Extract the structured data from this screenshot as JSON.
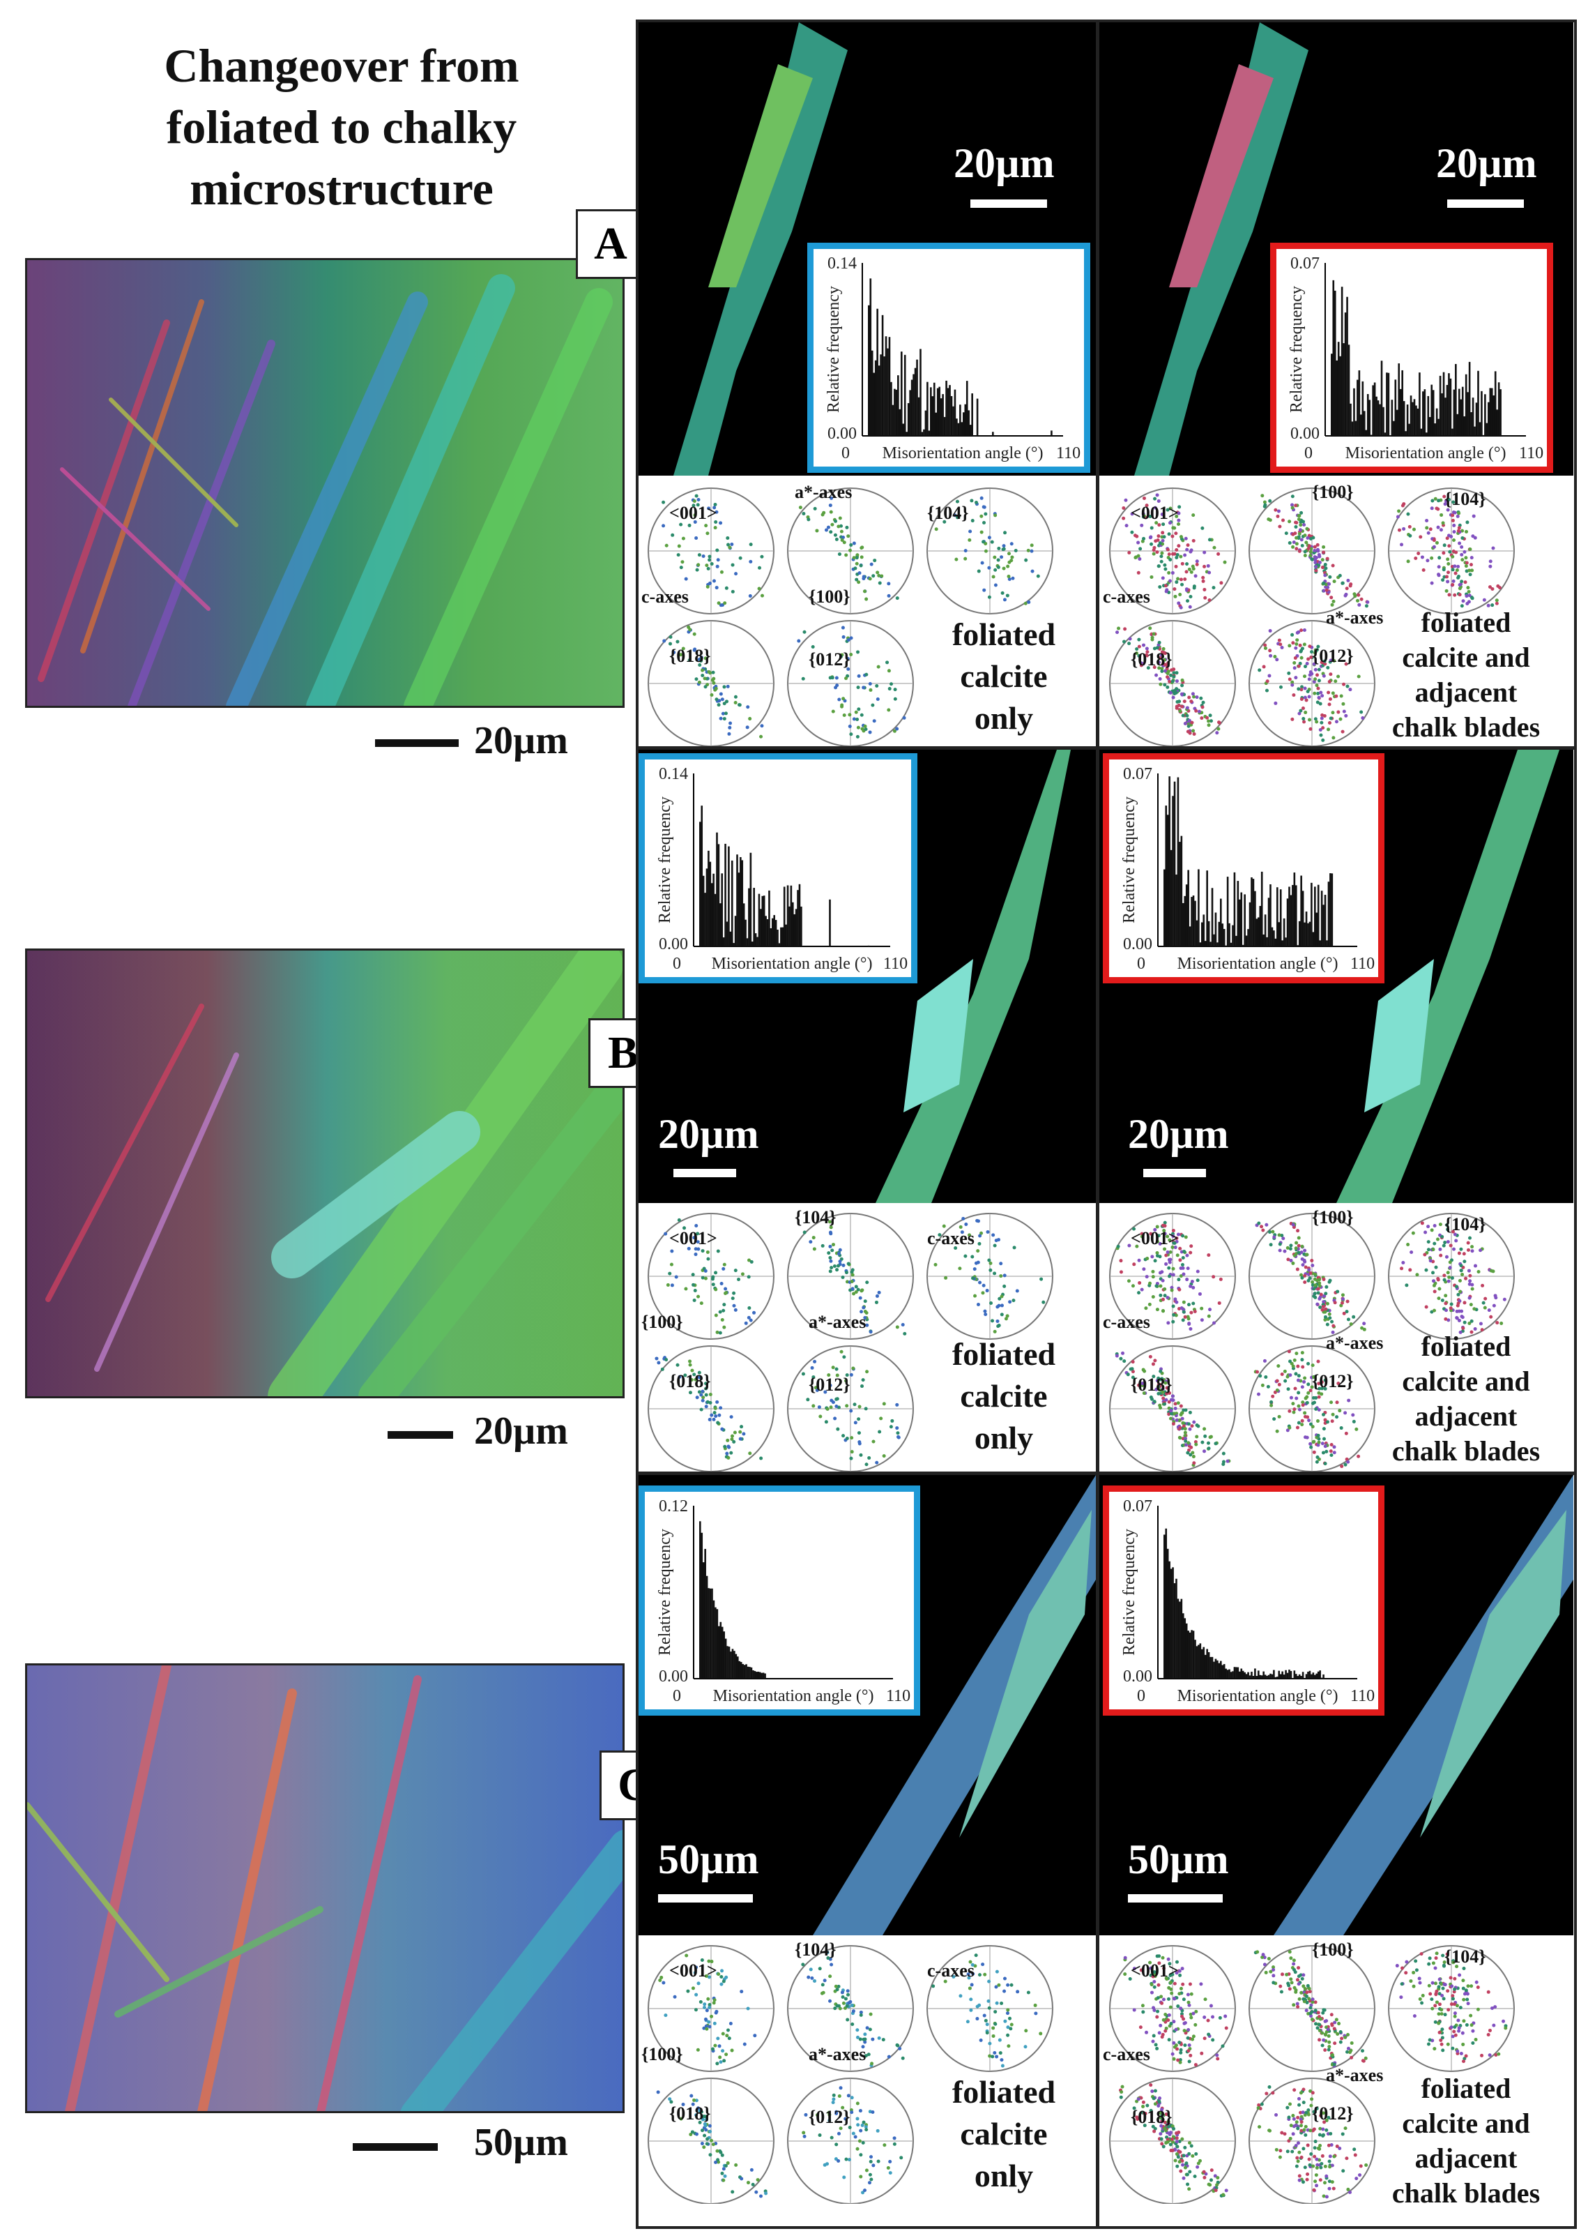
{
  "title_lines": [
    "Changeover from",
    "foliated to chalky",
    "microstructure"
  ],
  "rows": [
    {
      "letter": "A",
      "map_scale": "20µm",
      "left_panel": {
        "scale": "20µm",
        "hist_ymax": "0.14",
        "hist_ymin": "0.00",
        "hist_xmin": "0",
        "hist_xmax": "110",
        "hist_xlabel": "Misorientation angle (°)",
        "hist_ylabel": "Relative frequency",
        "pf_labels": [
          "<001>",
          "a*-axes",
          "{104}",
          "c-axes",
          "{100}",
          "{018}",
          "{012}"
        ],
        "caption": [
          "foliated",
          "calcite",
          "only"
        ]
      },
      "right_panel": {
        "scale": "20µm",
        "hist_ymax": "0.07",
        "hist_ymin": "0.00",
        "hist_xmin": "0",
        "hist_xmax": "110",
        "hist_xlabel": "Misorientation angle (°)",
        "hist_ylabel": "Relative frequency",
        "pf_labels": [
          "<001>",
          "{100}",
          "{104}",
          "c-axes",
          "a*-axes",
          "{018}",
          "{012}"
        ],
        "caption": [
          "foliated",
          "calcite and",
          "adjacent",
          "chalk blades"
        ]
      }
    },
    {
      "letter": "B",
      "map_scale": "20µm",
      "left_panel": {
        "scale": "20µm",
        "hist_ymax": "0.14",
        "hist_ymin": "0.00",
        "hist_xmin": "0",
        "hist_xmax": "110",
        "hist_xlabel": "Misorientation angle (°)",
        "hist_ylabel": "Relative frequency",
        "pf_labels": [
          "<001>",
          "{104}",
          "c-axes",
          "{100}",
          "a*-axes",
          "{018}",
          "{012}"
        ],
        "caption": [
          "foliated",
          "calcite",
          "only"
        ]
      },
      "right_panel": {
        "scale": "20µm",
        "hist_ymax": "0.07",
        "hist_ymin": "0.00",
        "hist_xmin": "0",
        "hist_xmax": "110",
        "hist_xlabel": "Misorientation angle (°)",
        "hist_ylabel": "Relative frequency",
        "pf_labels": [
          "<001>",
          "{100}",
          "{104}",
          "c-axes",
          "a*-axes",
          "{018}",
          "{012}"
        ],
        "caption": [
          "foliated",
          "calcite and",
          "adjacent",
          "chalk blades"
        ]
      }
    },
    {
      "letter": "C",
      "map_scale": "50µm",
      "left_panel": {
        "scale": "50µm",
        "hist_ymax": "0.12",
        "hist_ymin": "0.00",
        "hist_xmin": "0",
        "hist_xmax": "110",
        "hist_xlabel": "Misorientation angle (°)",
        "hist_ylabel": "Relative frequency",
        "pf_labels": [
          "<001>",
          "{104}",
          "c-axes",
          "{100}",
          "a*-axes",
          "{018}",
          "{012}"
        ],
        "caption": [
          "foliated",
          "calcite",
          "only"
        ]
      },
      "right_panel": {
        "scale": "50µm",
        "hist_ymax": "0.07",
        "hist_ymin": "0.00",
        "hist_xmin": "0",
        "hist_xmax": "110",
        "hist_xlabel": "Misorientation angle (°)",
        "hist_ylabel": "Relative frequency",
        "pf_labels": [
          "<001>",
          "{100}",
          "{104}",
          "c-axes",
          "a*-axes",
          "{018}",
          "{012}"
        ],
        "caption": [
          "foliated",
          "calcite and",
          "adjacent",
          "chalk blades"
        ]
      }
    }
  ],
  "colors": {
    "blue_frame": "#1e9ad6",
    "red_frame": "#e21b1b"
  }
}
